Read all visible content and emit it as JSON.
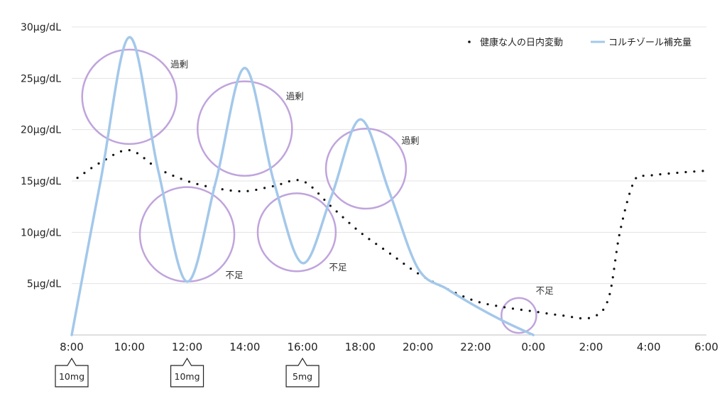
{
  "chart_data": {
    "type": "line",
    "y_unit_label": "μg/dL",
    "y_ticks": [
      "5μg/dL",
      "10μg/dL",
      "15μg/dL",
      "20μg/dL",
      "25μg/dL",
      "30μg/dL"
    ],
    "y_tick_values": [
      5,
      10,
      15,
      20,
      25,
      30
    ],
    "ylim": [
      0,
      30
    ],
    "x_ticks": [
      "8:00",
      "10:00",
      "12:00",
      "14:00",
      "16:00",
      "18:00",
      "20:00",
      "22:00",
      "0:00",
      "2:00",
      "4:00",
      "6:00"
    ],
    "x_hours": [
      8,
      10,
      12,
      14,
      16,
      18,
      20,
      22,
      24,
      26,
      28,
      30
    ],
    "grid": true,
    "legend_position": "top-right",
    "series": [
      {
        "name": "健康な人の日内変動",
        "style": "dotted",
        "color": "#111111",
        "x": [
          8.2,
          9,
          10,
          11,
          12,
          13,
          14,
          15,
          16,
          17,
          18,
          19,
          20,
          21,
          22,
          23,
          24,
          25,
          26,
          26.6,
          27,
          27.5,
          28,
          29,
          30
        ],
        "y": [
          15.3,
          16.8,
          18,
          16.2,
          15,
          14.3,
          14,
          14.5,
          15,
          12.5,
          10,
          8,
          6,
          4.5,
          3.3,
          2.7,
          2.3,
          1.9,
          1.7,
          3.5,
          10,
          15,
          15.5,
          15.8,
          16
        ]
      },
      {
        "name": "コルチゾール補充量",
        "style": "solid",
        "color": "#a3c8ea",
        "x": [
          8,
          9,
          10,
          11,
          12,
          13,
          14,
          15,
          16,
          17,
          18,
          19,
          20,
          21,
          22,
          23,
          24
        ],
        "y": [
          0,
          15,
          29,
          16,
          5.2,
          15,
          26,
          15,
          7,
          13.5,
          21,
          14,
          6.5,
          4.5,
          2.8,
          1.3,
          0
        ]
      }
    ],
    "annotations": [
      {
        "text": "過剰",
        "x": 10,
        "y": 23.2,
        "r": 4.6
      },
      {
        "text": "不足",
        "x": 12,
        "y": 9.8,
        "r": 4.6
      },
      {
        "text": "過剰",
        "x": 14,
        "y": 20.1,
        "r": 4.6
      },
      {
        "text": "不足",
        "x": 15.8,
        "y": 10,
        "r": 3.8
      },
      {
        "text": "過剰",
        "x": 18.2,
        "y": 16.2,
        "r": 3.9
      },
      {
        "text": "不足",
        "x": 23.5,
        "y": 1.9,
        "r": 1.7
      }
    ],
    "doses": [
      {
        "label": "10mg",
        "x": 8
      },
      {
        "label": "10mg",
        "x": 12
      },
      {
        "label": "5mg",
        "x": 16
      }
    ]
  }
}
